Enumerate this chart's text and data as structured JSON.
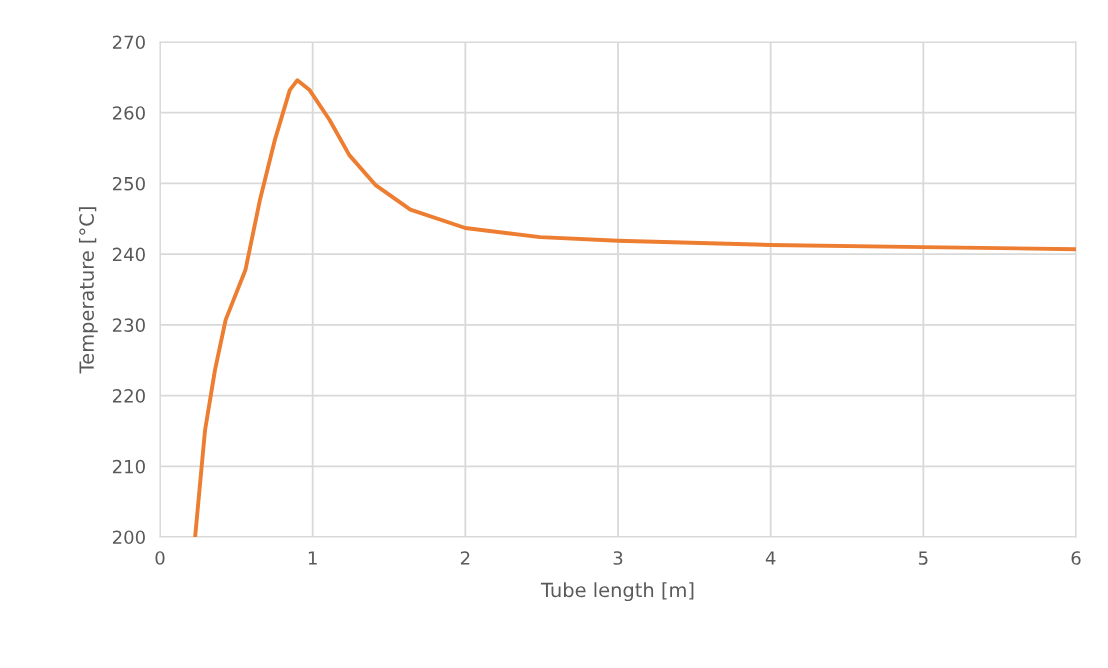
{
  "chart_data": {
    "type": "line",
    "xlabel": "Tube length [m]",
    "ylabel": "Temperature [°C]",
    "x": [
      0.23,
      0.295,
      0.36,
      0.43,
      0.56,
      0.655,
      0.753,
      0.85,
      0.9,
      0.98,
      1.11,
      1.24,
      1.41,
      1.64,
      2.0,
      2.49,
      3.0,
      4.0,
      5.0,
      6.0
    ],
    "series": [
      {
        "color": "#ed7d31",
        "values": [
          200,
          215.1,
          223.6,
          230.7,
          237.8,
          247.7,
          256.2,
          263.2,
          264.6,
          263.2,
          259,
          254,
          249.8,
          246.3,
          243.7,
          242.4,
          241.9,
          241.3,
          241.0,
          240.7
        ]
      }
    ],
    "xlim": [
      0,
      6
    ],
    "xticks": [
      0,
      1,
      2,
      3,
      4,
      5,
      6
    ],
    "ylim": [
      200,
      270
    ],
    "yticks": [
      200,
      210,
      220,
      230,
      240,
      250,
      260,
      270
    ],
    "grid": true,
    "legend": false,
    "marker": "none",
    "line_style": "solid"
  }
}
